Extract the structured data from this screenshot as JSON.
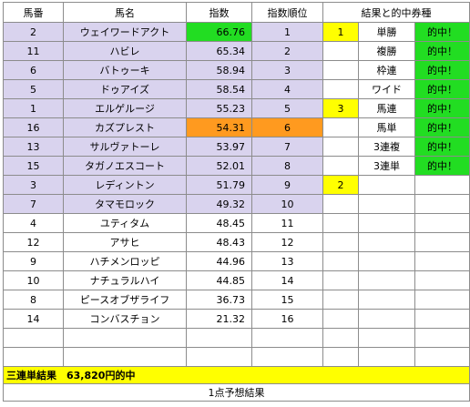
{
  "header": {
    "umaban": "馬番",
    "bamei": "馬名",
    "shisu": "指数",
    "shisu_juni": "指数順位",
    "kekka": "結果と的中券種"
  },
  "horses": [
    {
      "umaban": "2",
      "name": "ウェイワードアクト",
      "shisu": "66.76",
      "rank": "1",
      "result": "1",
      "ticket": "単勝",
      "hit": "的中！"
    },
    {
      "umaban": "11",
      "name": "ハビレ",
      "shisu": "65.34",
      "rank": "2",
      "result": "",
      "ticket": "複勝",
      "hit": "的中！"
    },
    {
      "umaban": "6",
      "name": "バトゥーキ",
      "shisu": "58.94",
      "rank": "3",
      "result": "",
      "ticket": "枠連",
      "hit": "的中！"
    },
    {
      "umaban": "5",
      "name": "ドゥアイズ",
      "shisu": "58.54",
      "rank": "4",
      "result": "",
      "ticket": "ワイド",
      "hit": "的中！"
    },
    {
      "umaban": "1",
      "name": "エルゲルージ",
      "shisu": "55.23",
      "rank": "5",
      "result": "3",
      "ticket": "馬連",
      "hit": "的中！"
    },
    {
      "umaban": "16",
      "name": "カズプレスト",
      "shisu": "54.31",
      "rank": "6",
      "result": "",
      "ticket": "馬単",
      "hit": "的中！"
    },
    {
      "umaban": "13",
      "name": "サルヴァトーレ",
      "shisu": "53.97",
      "rank": "7",
      "result": "",
      "ticket": "3連複",
      "hit": "的中！"
    },
    {
      "umaban": "15",
      "name": "タガノエスコート",
      "shisu": "52.01",
      "rank": "8",
      "result": "",
      "ticket": "3連単",
      "hit": "的中！"
    },
    {
      "umaban": "3",
      "name": "レディントン",
      "shisu": "51.79",
      "rank": "9",
      "result": "2",
      "ticket": "",
      "hit": ""
    },
    {
      "umaban": "7",
      "name": "タマモロック",
      "shisu": "49.32",
      "rank": "10",
      "result": "",
      "ticket": "",
      "hit": ""
    },
    {
      "umaban": "4",
      "name": "ユティタム",
      "shisu": "48.45",
      "rank": "11",
      "result": "",
      "ticket": "",
      "hit": ""
    },
    {
      "umaban": "12",
      "name": "アサヒ",
      "shisu": "48.43",
      "rank": "12",
      "result": "",
      "ticket": "",
      "hit": ""
    },
    {
      "umaban": "9",
      "name": "ハチメンロッピ",
      "shisu": "44.96",
      "rank": "13",
      "result": "",
      "ticket": "",
      "hit": ""
    },
    {
      "umaban": "10",
      "name": "ナチュラルハイ",
      "shisu": "44.85",
      "rank": "14",
      "result": "",
      "ticket": "",
      "hit": ""
    },
    {
      "umaban": "8",
      "name": "ピースオブザライフ",
      "shisu": "36.73",
      "rank": "15",
      "result": "",
      "ticket": "",
      "hit": ""
    },
    {
      "umaban": "14",
      "name": "コンバスチョン",
      "shisu": "21.32",
      "rank": "16",
      "result": "",
      "ticket": "",
      "hit": ""
    }
  ],
  "footer": {
    "sanrentan": "三連単結果　63,820円的中",
    "yoso": "1点予想結果"
  },
  "colors": {
    "shaded_rows": "#d9d3ee",
    "top_index": "#22dd22",
    "hit_ticket": "#22dd22",
    "highlight_index": "#ff9a1f",
    "result_place": "#ffff00",
    "footer_banner": "#ffff00"
  }
}
